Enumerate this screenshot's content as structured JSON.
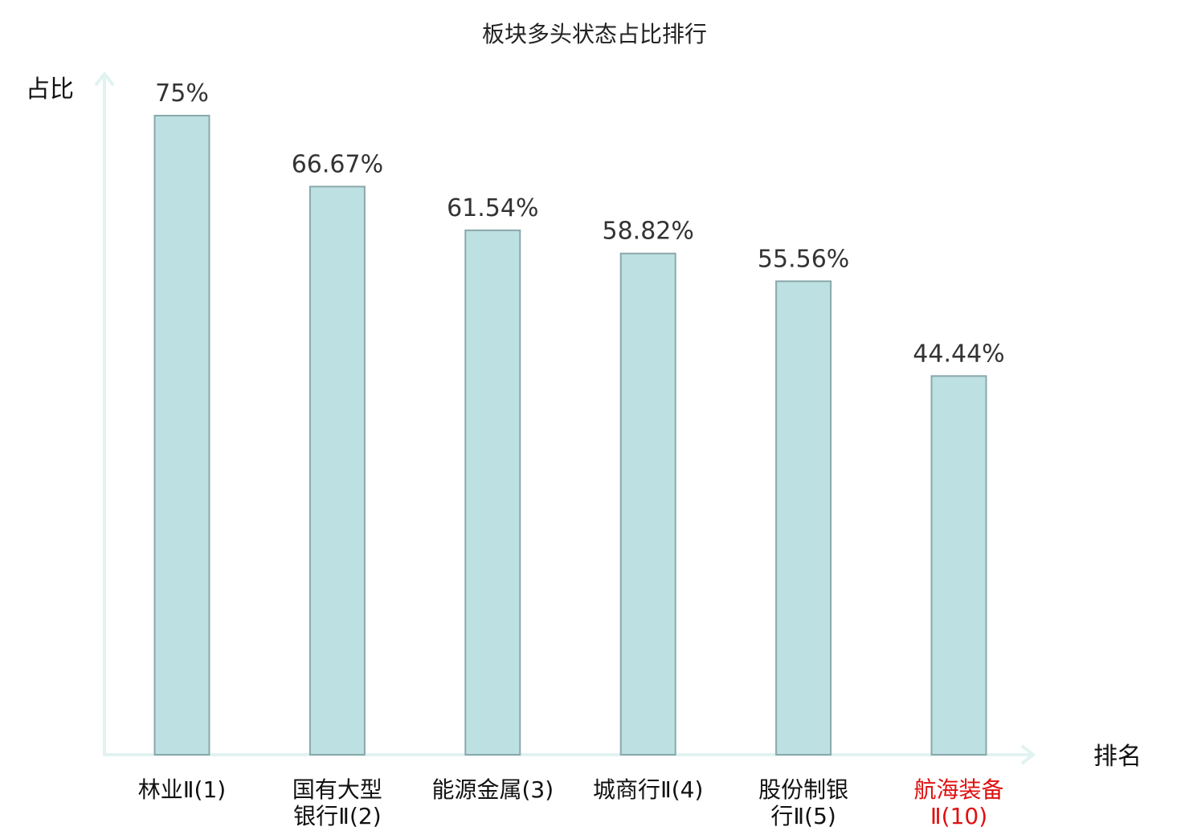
{
  "chart_data": {
    "type": "bar",
    "title": "板块多头状态占比排行",
    "ylabel": "占比",
    "xlabel": "排名",
    "categories": [
      [
        "林业Ⅱ(1)"
      ],
      [
        "国有大型",
        "银行Ⅱ(2)"
      ],
      [
        "能源金属(3)"
      ],
      [
        "城商行Ⅱ(4)"
      ],
      [
        "股份制银",
        "行Ⅱ(5)"
      ],
      [
        "航海装备",
        "Ⅱ(10)"
      ]
    ],
    "values": [
      75,
      66.67,
      61.54,
      58.82,
      55.56,
      44.44
    ],
    "value_labels": [
      "75%",
      "66.67%",
      "61.54%",
      "58.82%",
      "55.56%",
      "44.44%"
    ],
    "highlight_index": 5,
    "ylim": [
      0,
      75
    ],
    "grid": false,
    "colors": {
      "bar_fill": "#bde0e3",
      "bar_stroke": "#8aa8ab",
      "axis": "#e1f3f1",
      "category_text": "#111111",
      "highlight_text": "#e01010"
    }
  }
}
